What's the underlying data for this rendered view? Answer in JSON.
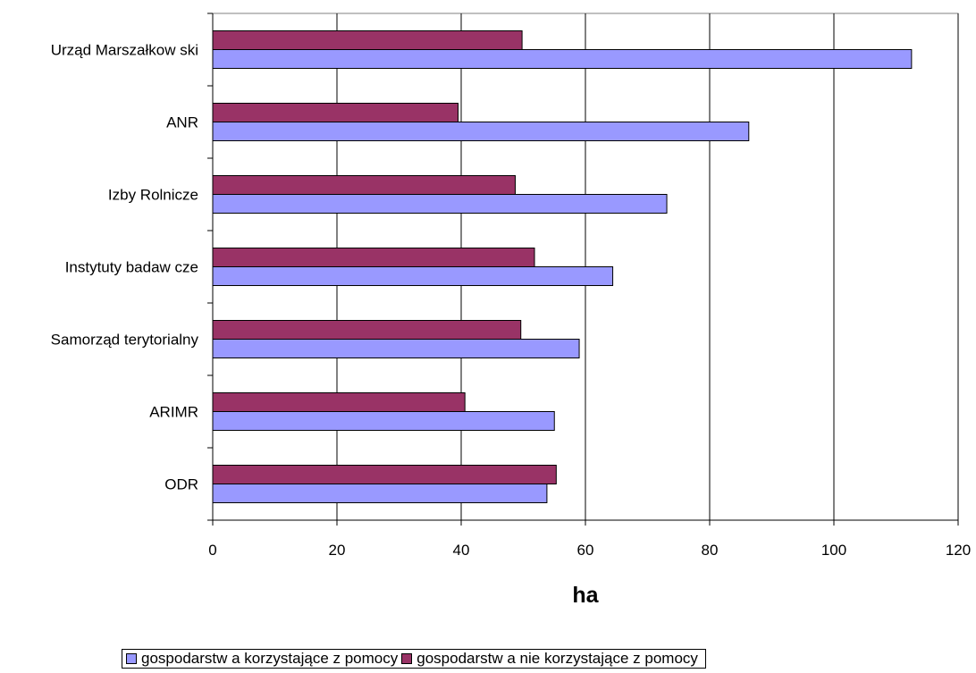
{
  "chart_data": {
    "type": "bar",
    "orientation": "horizontal",
    "categories": [
      "Urząd Marszałkow ski",
      "ANR",
      "Izby Rolnicze",
      "Instytuty badaw cze",
      "Samorząd terytorialny",
      "ARIMR",
      "ODR"
    ],
    "series": [
      {
        "name": "gospodarstw a korzystające z pomocy",
        "color": "#9999FF",
        "values": [
          112.5,
          86.3,
          73.1,
          64.4,
          59.0,
          55.0,
          53.8
        ]
      },
      {
        "name": "gospodarstw a nie korzystające z pomocy",
        "color": "#993366",
        "values": [
          49.8,
          39.5,
          48.7,
          51.8,
          49.6,
          40.6,
          55.3
        ]
      }
    ],
    "xlabel": "ha",
    "xlim": [
      0,
      120
    ],
    "xticks": [
      "0",
      "20",
      "40",
      "60",
      "80",
      "100",
      "120"
    ],
    "grid": true,
    "legend_position": "bottom"
  }
}
